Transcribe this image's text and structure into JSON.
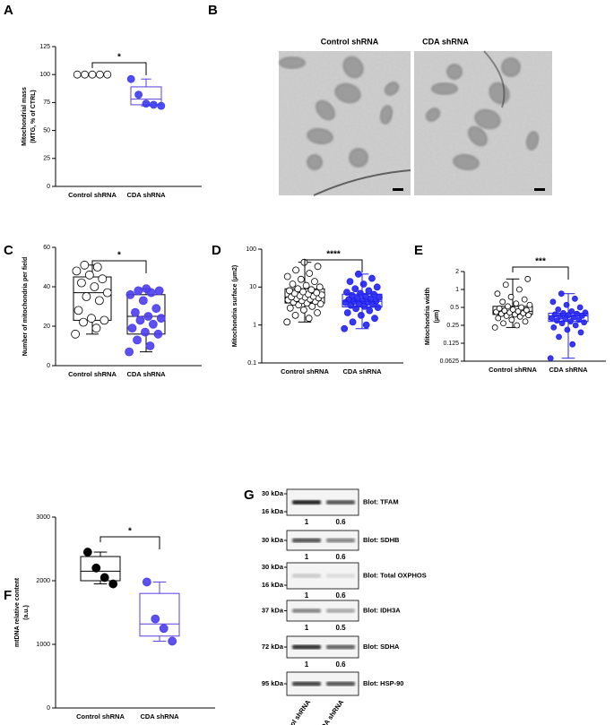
{
  "chart_data": [
    {
      "panel": "A",
      "type": "box",
      "ylabel": [
        "Mitochondrial mass",
        "(MTG, % of CTRL)"
      ],
      "categories": [
        "Control shRNA",
        "CDA shRNA"
      ],
      "points": [
        [
          100,
          100,
          100,
          100,
          100
        ],
        [
          96,
          82,
          74,
          73,
          72
        ]
      ],
      "boxes": [
        {
          "min": 100,
          "q1": 100,
          "median": 100,
          "q3": 100,
          "max": 100
        },
        {
          "min": 72,
          "q1": 73,
          "median": 78,
          "q3": 89,
          "max": 96
        }
      ],
      "point_fill": [
        "#ffffff",
        "#3b3bf2"
      ],
      "box_color": [
        "#000000",
        "#5a3ee0"
      ],
      "significance": "*",
      "ylim": [
        0,
        125
      ],
      "yticks": [
        0,
        25,
        50,
        75,
        100,
        125
      ],
      "log": false
    },
    {
      "panel": "C",
      "type": "box",
      "ylabel": [
        "Number of mitochondria per field"
      ],
      "categories": [
        "Control shRNA",
        "CDA shRNA"
      ],
      "points": [
        [
          16,
          19,
          22,
          23,
          24,
          28,
          33,
          35,
          37,
          40,
          42,
          44,
          46,
          48,
          50,
          51
        ],
        [
          7,
          10,
          13,
          16,
          17,
          19,
          21,
          23,
          24,
          25,
          27,
          29,
          33,
          36,
          37,
          38,
          38,
          39
        ]
      ],
      "boxes": [
        {
          "min": 16,
          "q1": 23,
          "median": 37,
          "q3": 45,
          "max": 51
        },
        {
          "min": 7,
          "q1": 16,
          "median": 25,
          "q3": 36,
          "max": 39
        }
      ],
      "point_fill": [
        "#ffffff",
        "#4b3df0"
      ],
      "box_color": [
        "#000000",
        "#000000"
      ],
      "significance": "*",
      "ylim": [
        0,
        60
      ],
      "yticks": [
        0,
        20,
        40,
        60
      ],
      "log": false
    },
    {
      "panel": "D",
      "type": "box",
      "ylabel": [
        "Mitochondria surface (µm2)"
      ],
      "categories": [
        "Control shRNA",
        "CDA shRNA"
      ],
      "points": [
        [
          1.2,
          1.5,
          1.8,
          2.1,
          2.5,
          2.8,
          3.1,
          3.4,
          3.6,
          3.8,
          4.0,
          4.2,
          4.4,
          4.6,
          4.8,
          5.0,
          5.2,
          5.4,
          5.5,
          5.7,
          5.9,
          6.2,
          6.5,
          6.8,
          7.1,
          7.5,
          8,
          8.5,
          9,
          10,
          11,
          12,
          14,
          16,
          19,
          23,
          28,
          35,
          45
        ],
        [
          0.8,
          1.0,
          1.2,
          1.5,
          1.8,
          2.1,
          2.4,
          2.7,
          2.9,
          3.1,
          3.3,
          3.5,
          3.7,
          3.9,
          4.0,
          4.2,
          4.3,
          4.5,
          4.7,
          4.9,
          5.1,
          5.4,
          5.7,
          6.0,
          6.4,
          6.8,
          7.3,
          8,
          9,
          10,
          12,
          14,
          17,
          22
        ]
      ],
      "boxes": [
        {
          "min": 1.2,
          "q1": 3.8,
          "median": 5.5,
          "q3": 9,
          "max": 45
        },
        {
          "min": 0.8,
          "q1": 3,
          "median": 4.2,
          "q3": 6.5,
          "max": 22
        }
      ],
      "point_fill": [
        "#ffffff",
        "#2222ee"
      ],
      "box_color": [
        "#000000",
        "#2222ee"
      ],
      "significance": "****",
      "ylim": [
        0.1,
        100
      ],
      "yticks": [
        0.1,
        1,
        10,
        100
      ],
      "log": true
    },
    {
      "panel": "E",
      "type": "box",
      "ylabel": [
        "Mitochondria width",
        "(µm)"
      ],
      "categories": [
        "Control shRNA",
        "CDA shRNA"
      ],
      "points": [
        [
          0.23,
          0.25,
          0.27,
          0.29,
          0.31,
          0.33,
          0.35,
          0.36,
          0.37,
          0.38,
          0.39,
          0.4,
          0.41,
          0.42,
          0.43,
          0.44,
          0.45,
          0.46,
          0.48,
          0.5,
          0.52,
          0.55,
          0.58,
          0.62,
          0.68,
          0.75,
          0.85,
          1.0,
          1.2,
          1.5
        ],
        [
          0.07,
          0.12,
          0.16,
          0.19,
          0.21,
          0.23,
          0.25,
          0.27,
          0.28,
          0.29,
          0.3,
          0.31,
          0.32,
          0.33,
          0.34,
          0.35,
          0.36,
          0.37,
          0.38,
          0.39,
          0.4,
          0.41,
          0.43,
          0.46,
          0.5,
          0.55,
          0.62,
          0.7,
          0.85
        ]
      ],
      "boxes": [
        {
          "min": 0.23,
          "q1": 0.38,
          "median": 0.43,
          "q3": 0.52,
          "max": 1.5
        },
        {
          "min": 0.07,
          "q1": 0.29,
          "median": 0.36,
          "q3": 0.4,
          "max": 0.85
        }
      ],
      "point_fill": [
        "#ffffff",
        "#2222ee"
      ],
      "box_color": [
        "#000000",
        "#2222ee"
      ],
      "significance": "***",
      "ylim": [
        0.0625,
        2
      ],
      "yticks": [
        0.0625,
        0.125,
        0.25,
        0.5,
        1,
        2
      ],
      "log": true
    },
    {
      "panel": "F",
      "type": "box",
      "ylabel": [
        "mtDNA relative content",
        "(a.u.)"
      ],
      "categories": [
        "Control shRNA",
        "CDA shRNA"
      ],
      "points": [
        [
          2450,
          2200,
          2050,
          1950
        ],
        [
          1980,
          1400,
          1250,
          1050
        ]
      ],
      "boxes": [
        {
          "min": 1950,
          "q1": 2000,
          "median": 2150,
          "q3": 2380,
          "max": 2450
        },
        {
          "min": 1050,
          "q1": 1130,
          "median": 1320,
          "q3": 1800,
          "max": 1980
        }
      ],
      "point_fill": [
        "#000000",
        "#4b3df0"
      ],
      "box_color": [
        "#000000",
        "#5a3ee0"
      ],
      "significance": "*",
      "ylim": [
        0,
        3000
      ],
      "yticks": [
        0,
        1000,
        2000,
        3000
      ],
      "log": false
    }
  ],
  "em": {
    "panel": "B",
    "titles": [
      "Control shRNA",
      "CDA shRNA"
    ]
  },
  "blots": {
    "panel": "G",
    "lanes": [
      "Control shRNA",
      "CDA shRNA"
    ],
    "rows": [
      {
        "markers": [
          "30 kDa",
          "16 kDa"
        ],
        "name": "Blot: TFAM",
        "quant": [
          1,
          0.6
        ]
      },
      {
        "markers": [
          "30 kDa"
        ],
        "name": "Blot: SDHB",
        "quant": [
          1,
          0.6
        ]
      },
      {
        "markers": [
          "30 kDa",
          "16 kDa"
        ],
        "name": "Blot: Total OXPHOS",
        "quant": [
          1,
          0.6
        ]
      },
      {
        "markers": [
          "37 kDa"
        ],
        "name": "Blot: IDH3A",
        "quant": [
          1,
          0.5
        ]
      },
      {
        "markers": [
          "72 kDa"
        ],
        "name": "Blot: SDHA",
        "quant": [
          1,
          0.6
        ]
      },
      {
        "markers": [
          "95 kDa"
        ],
        "name": "Blot: HSP-90"
      }
    ]
  }
}
